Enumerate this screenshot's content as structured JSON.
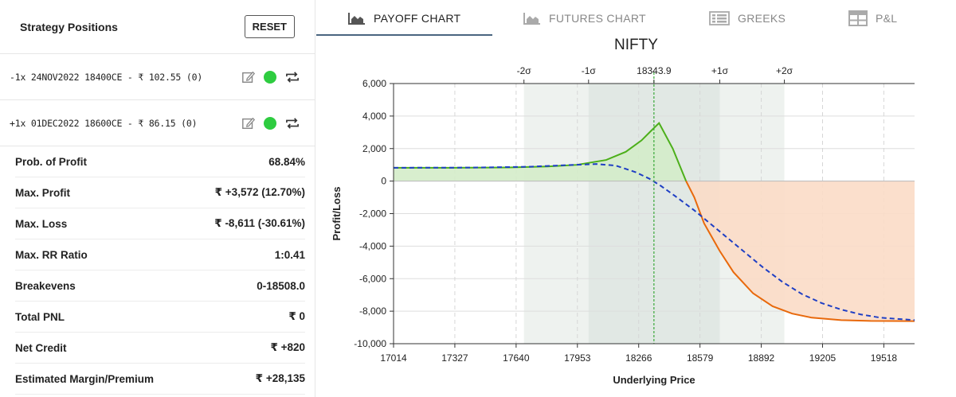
{
  "left": {
    "title": "Strategy Positions",
    "reset_label": "RESET",
    "legs": [
      {
        "text": "-1x 24NOV2022 18400CE - ₹ 102.55 (0)"
      },
      {
        "text": "+1x 01DEC2022 18600CE - ₹ 86.15 (0)"
      }
    ],
    "stats": [
      {
        "label": "Prob. of Profit",
        "value": "68.84%"
      },
      {
        "label": "Max. Profit",
        "value": "₹ +3,572 (12.70%)"
      },
      {
        "label": "Max. Loss",
        "value": "₹ -8,611 (-30.61%)"
      },
      {
        "label": "Max. RR Ratio",
        "value": "1:0.41"
      },
      {
        "label": "Breakevens",
        "value": "0-18508.0"
      },
      {
        "label": "Total PNL",
        "value": "₹ 0"
      },
      {
        "label": "Net Credit",
        "value": "₹ +820"
      },
      {
        "label": "Estimated Margin/Premium",
        "value": "₹ +28,135"
      }
    ],
    "colors": {
      "status": "#2ecc40"
    }
  },
  "tabs": [
    {
      "label": "PAYOFF CHART",
      "icon": "area-chart-icon",
      "active": true
    },
    {
      "label": "FUTURES CHART",
      "icon": "area-chart-icon",
      "active": false
    },
    {
      "label": "GREEKS",
      "icon": "list-icon",
      "active": false
    },
    {
      "label": "P&L",
      "icon": "grid-icon",
      "active": false
    }
  ],
  "chart_data": {
    "type": "line",
    "title": "NIFTY",
    "xlabel": "Underlying Price",
    "ylabel": "Profit/Loss",
    "xlim": [
      17014,
      19675
    ],
    "ylim": [
      -10000,
      6000
    ],
    "x_ticks": [
      17014,
      17327,
      17640,
      17953,
      18266,
      18579,
      18892,
      19205,
      19518
    ],
    "y_ticks": [
      6000,
      4000,
      2000,
      0,
      -2000,
      -4000,
      -6000,
      -8000,
      -10000
    ],
    "y_tick_labels": [
      "6,000",
      "4,000",
      "2,000",
      "0",
      "-2,000",
      "-4,000",
      "-6,000",
      "-8,000",
      "-10,000"
    ],
    "spot": 18343.9,
    "spot_label": "18343.9",
    "sigma_labels": [
      {
        "label": "-2σ",
        "x": 17680
      },
      {
        "label": "-1σ",
        "x": 18010
      },
      {
        "label": "+1σ",
        "x": 18345,
        "display_x": 18680
      },
      {
        "label": "+2σ",
        "x": 19010
      }
    ],
    "sigma_bands": {
      "inner": [
        18010,
        18680
      ],
      "outer": [
        17680,
        19010
      ]
    },
    "series": [
      {
        "name": "",
        "style": "solid",
        "points": [
          [
            17014,
            820
          ],
          [
            17300,
            820
          ],
          [
            17600,
            840
          ],
          [
            17800,
            900
          ],
          [
            17950,
            1000
          ],
          [
            18100,
            1300
          ],
          [
            18200,
            1800
          ],
          [
            18280,
            2500
          ],
          [
            18330,
            3100
          ],
          [
            18370,
            3572
          ],
          [
            18440,
            2000
          ],
          [
            18508,
            0
          ],
          [
            18550,
            -1000
          ],
          [
            18600,
            -2600
          ],
          [
            18680,
            -4300
          ],
          [
            18750,
            -5600
          ],
          [
            18850,
            -6900
          ],
          [
            18950,
            -7700
          ],
          [
            19050,
            -8150
          ],
          [
            19150,
            -8400
          ],
          [
            19300,
            -8550
          ],
          [
            19450,
            -8600
          ],
          [
            19675,
            -8611
          ]
        ]
      },
      {
        "name": "",
        "style": "dashed",
        "points": [
          [
            17014,
            820
          ],
          [
            17400,
            830
          ],
          [
            17700,
            880
          ],
          [
            17900,
            980
          ],
          [
            18050,
            1050
          ],
          [
            18150,
            950
          ],
          [
            18250,
            550
          ],
          [
            18320,
            150
          ],
          [
            18380,
            -300
          ],
          [
            18450,
            -900
          ],
          [
            18550,
            -1800
          ],
          [
            18620,
            -2500
          ],
          [
            18700,
            -3300
          ],
          [
            18800,
            -4300
          ],
          [
            18900,
            -5300
          ],
          [
            19000,
            -6200
          ],
          [
            19100,
            -6950
          ],
          [
            19200,
            -7500
          ],
          [
            19300,
            -7900
          ],
          [
            19400,
            -8200
          ],
          [
            19500,
            -8400
          ],
          [
            19675,
            -8550
          ]
        ]
      }
    ],
    "colors": {
      "profit_line": "#4caf1a",
      "loss_line": "#e8690c",
      "profit_fill": "#d4ecc9",
      "loss_fill": "#fbdcc6",
      "dashed": "#1f3fc4",
      "spot_line": "#3aa83a",
      "band_inner": "#e1e8e4",
      "band_outer": "#eef2ef"
    },
    "grid": true
  }
}
